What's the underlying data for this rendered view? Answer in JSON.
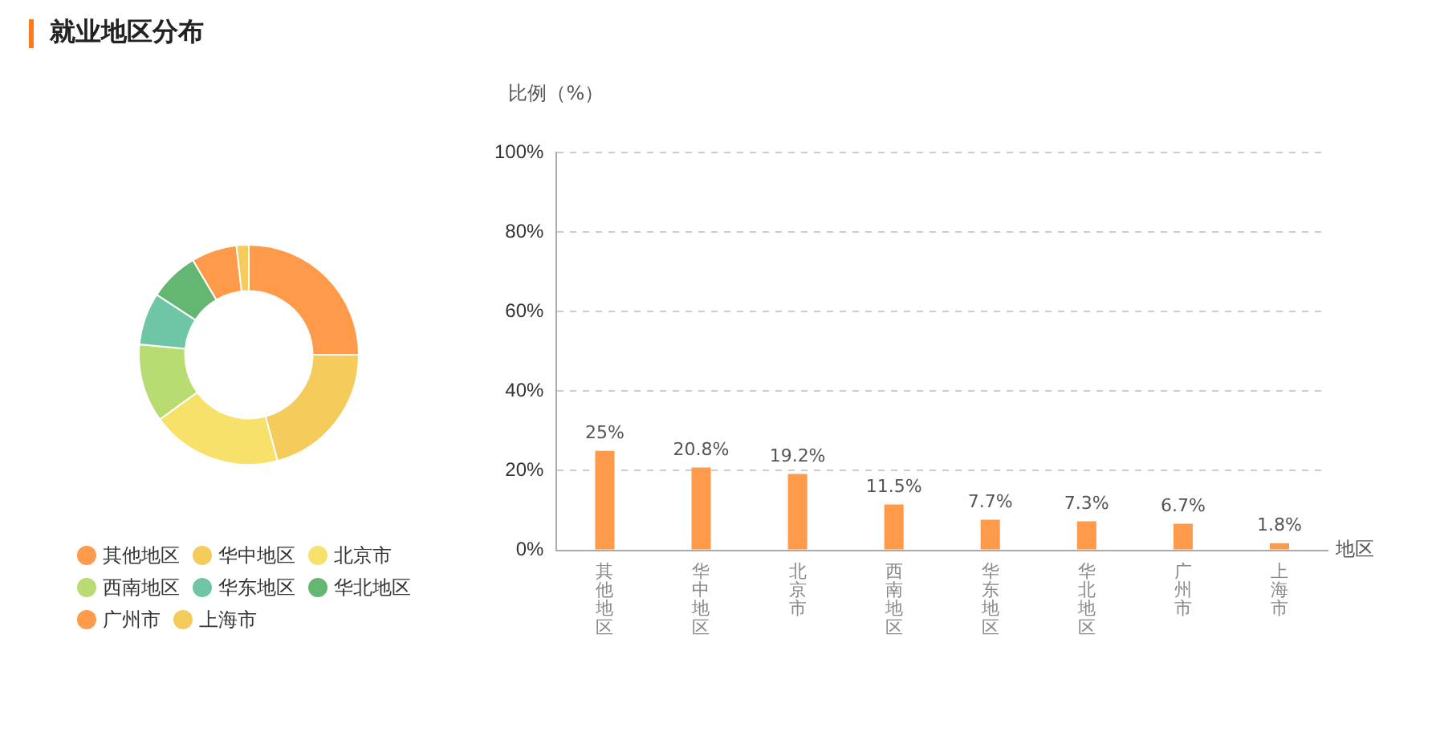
{
  "chart_data": [
    {
      "type": "donut",
      "title": "就业地区分布",
      "categories": [
        "其他地区",
        "华中地区",
        "北京市",
        "西南地区",
        "华东地区",
        "华北地区",
        "广州市",
        "上海市"
      ],
      "values": [
        25,
        20.8,
        19.2,
        11.5,
        7.7,
        7.3,
        6.7,
        1.8
      ],
      "colors": [
        "#ff9a4a",
        "#f5cb5c",
        "#f7e16b",
        "#b8db72",
        "#6ec6a5",
        "#64b673",
        "#ff9a4a",
        "#f5cb5c"
      ],
      "legend": "bottom"
    },
    {
      "type": "bar",
      "ylabel": "比例（%）",
      "xlabel": "地区",
      "categories": [
        "其他地区",
        "华中地区",
        "北京市",
        "西南地区",
        "华东地区",
        "华北地区",
        "广州市",
        "上海市"
      ],
      "values": [
        25,
        20.8,
        19.2,
        11.5,
        7.7,
        7.3,
        6.7,
        1.8
      ],
      "color": "#ff9a4a",
      "value_labels": [
        "25%",
        "20.8%",
        "19.2%",
        "11.5%",
        "7.7%",
        "7.3%",
        "6.7%",
        "1.8%"
      ],
      "ylim": [
        0,
        100
      ],
      "yticks": [
        {
          "value": 0,
          "label": "0%"
        },
        {
          "value": 20,
          "label": "20%"
        },
        {
          "value": 40,
          "label": "40%"
        },
        {
          "value": 60,
          "label": "60%"
        },
        {
          "value": 80,
          "label": "80%"
        },
        {
          "value": 100,
          "label": "100%"
        }
      ],
      "grid": "y",
      "legend": false
    }
  ]
}
